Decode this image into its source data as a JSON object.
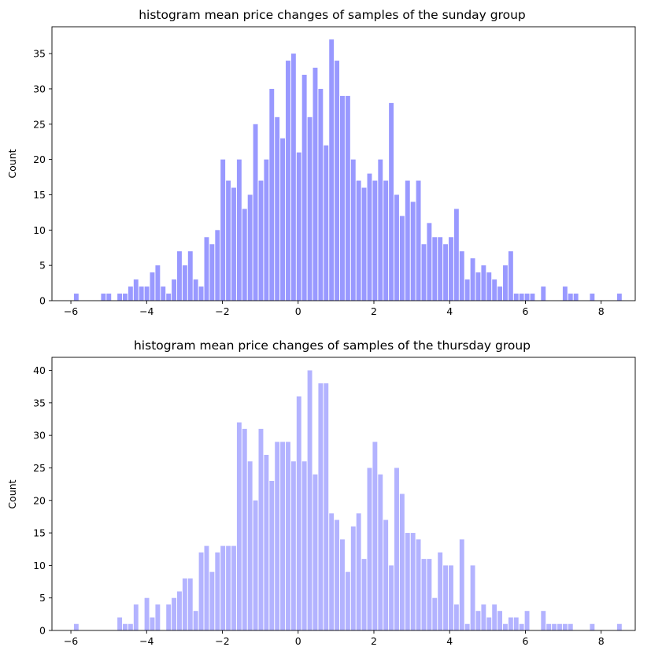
{
  "chart_data": [
    {
      "type": "bar",
      "title": "histogram mean price changes of samples of the sunday group",
      "xlabel": "",
      "ylabel": "Count",
      "xlim": [
        -6.5,
        8.9
      ],
      "ylim": [
        0,
        38.8
      ],
      "xticks": [
        -6,
        -4,
        -2,
        0,
        2,
        4,
        6,
        8
      ],
      "yticks": [
        0,
        5,
        10,
        15,
        20,
        25,
        30,
        35
      ],
      "bar_color": "#9999ff",
      "bin_start": -5.93,
      "bin_width": 0.1434,
      "values": [
        1,
        0,
        0,
        0,
        0,
        1,
        1,
        0,
        1,
        1,
        2,
        3,
        2,
        2,
        4,
        5,
        2,
        1,
        3,
        7,
        5,
        7,
        3,
        2,
        9,
        8,
        10,
        20,
        17,
        16,
        20,
        13,
        15,
        25,
        17,
        20,
        30,
        26,
        23,
        34,
        35,
        21,
        32,
        26,
        33,
        30,
        22,
        37,
        34,
        29,
        29,
        20,
        17,
        16,
        18,
        17,
        20,
        17,
        28,
        15,
        12,
        17,
        14,
        17,
        8,
        11,
        9,
        9,
        8,
        9,
        13,
        7,
        3,
        6,
        4,
        5,
        4,
        3,
        2,
        5,
        7,
        1,
        1,
        1,
        1,
        0,
        2,
        0,
        0,
        0,
        2,
        1,
        1,
        0,
        0,
        1,
        0,
        0,
        0,
        0,
        1
      ]
    },
    {
      "type": "bar",
      "title": "histogram mean price changes of samples of the thursday group",
      "xlabel": "",
      "ylabel": "Count",
      "xlim": [
        -6.5,
        8.9
      ],
      "ylim": [
        0,
        42.0
      ],
      "xticks": [
        -6,
        -4,
        -2,
        0,
        2,
        4,
        6,
        8
      ],
      "yticks": [
        0,
        5,
        10,
        15,
        20,
        25,
        30,
        35,
        40
      ],
      "bar_color": "#b3b3ff",
      "bin_start": -5.93,
      "bin_width": 0.1434,
      "values": [
        1,
        0,
        0,
        0,
        0,
        0,
        0,
        0,
        2,
        1,
        1,
        4,
        0,
        5,
        2,
        4,
        0,
        4,
        5,
        6,
        8,
        8,
        3,
        12,
        13,
        9,
        12,
        13,
        13,
        13,
        32,
        31,
        26,
        20,
        31,
        27,
        23,
        29,
        29,
        29,
        26,
        36,
        26,
        40,
        24,
        38,
        38,
        18,
        17,
        14,
        9,
        16,
        18,
        11,
        25,
        29,
        24,
        17,
        10,
        25,
        21,
        15,
        15,
        14,
        11,
        11,
        5,
        12,
        10,
        10,
        4,
        14,
        1,
        10,
        3,
        4,
        2,
        4,
        3,
        1,
        2,
        2,
        1,
        3,
        0,
        0,
        3,
        1,
        1,
        1,
        1,
        1,
        0,
        0,
        0,
        1,
        0,
        0,
        0,
        0,
        1
      ]
    }
  ]
}
